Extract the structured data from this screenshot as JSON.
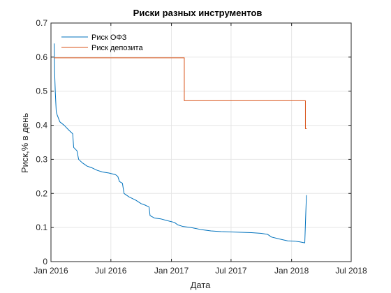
{
  "chart_data": {
    "type": "line",
    "title": "Риски разных инструментов",
    "xlabel": "Дата",
    "ylabel": "Риск,% в день",
    "xlim": [
      "2016-01-01",
      "2018-07-01"
    ],
    "ylim": [
      0,
      0.7
    ],
    "x_ticks": [
      {
        "date": "2016-01-01",
        "label": "Jan 2016"
      },
      {
        "date": "2016-07-01",
        "label": "Jul 2016"
      },
      {
        "date": "2017-01-01",
        "label": "Jan 2017"
      },
      {
        "date": "2017-07-01",
        "label": "Jul 2017"
      },
      {
        "date": "2018-01-01",
        "label": "Jan 2018"
      },
      {
        "date": "2018-07-01",
        "label": "Jul 2018"
      }
    ],
    "y_ticks": [
      {
        "value": 0,
        "label": "0"
      },
      {
        "value": 0.1,
        "label": "0.1"
      },
      {
        "value": 0.2,
        "label": "0.2"
      },
      {
        "value": 0.3,
        "label": "0.3"
      },
      {
        "value": 0.4,
        "label": "0.4"
      },
      {
        "value": 0.5,
        "label": "0.5"
      },
      {
        "value": 0.6,
        "label": "0.6"
      },
      {
        "value": 0.7,
        "label": "0.7"
      }
    ],
    "grid": true,
    "legend_position": "top-left",
    "series": [
      {
        "name": "Риск ОФЗ",
        "color": "#0072BD",
        "points": [
          [
            "2016-01-11",
            0.64
          ],
          [
            "2016-01-12",
            0.56
          ],
          [
            "2016-01-14",
            0.5
          ],
          [
            "2016-01-17",
            0.44
          ],
          [
            "2016-01-20",
            0.43
          ],
          [
            "2016-01-28",
            0.41
          ],
          [
            "2016-02-10",
            0.4
          ],
          [
            "2016-02-25",
            0.385
          ],
          [
            "2016-03-07",
            0.375
          ],
          [
            "2016-03-10",
            0.335
          ],
          [
            "2016-03-20",
            0.325
          ],
          [
            "2016-03-25",
            0.3
          ],
          [
            "2016-04-05",
            0.29
          ],
          [
            "2016-04-20",
            0.28
          ],
          [
            "2016-05-05",
            0.275
          ],
          [
            "2016-05-20",
            0.268
          ],
          [
            "2016-06-05",
            0.263
          ],
          [
            "2016-06-25",
            0.26
          ],
          [
            "2016-07-15",
            0.255
          ],
          [
            "2016-07-22",
            0.25
          ],
          [
            "2016-07-27",
            0.235
          ],
          [
            "2016-08-05",
            0.23
          ],
          [
            "2016-08-10",
            0.2
          ],
          [
            "2016-08-25",
            0.19
          ],
          [
            "2016-09-15",
            0.18
          ],
          [
            "2016-10-01",
            0.17
          ],
          [
            "2016-10-15",
            0.165
          ],
          [
            "2016-10-25",
            0.16
          ],
          [
            "2016-10-28",
            0.135
          ],
          [
            "2016-11-10",
            0.128
          ],
          [
            "2016-12-01",
            0.125
          ],
          [
            "2016-12-20",
            0.12
          ],
          [
            "2017-01-10",
            0.115
          ],
          [
            "2017-01-20",
            0.108
          ],
          [
            "2017-02-05",
            0.103
          ],
          [
            "2017-03-01",
            0.1
          ],
          [
            "2017-04-01",
            0.094
          ],
          [
            "2017-05-01",
            0.09
          ],
          [
            "2017-06-01",
            0.088
          ],
          [
            "2017-07-01",
            0.087
          ],
          [
            "2017-08-01",
            0.086
          ],
          [
            "2017-09-01",
            0.085
          ],
          [
            "2017-10-01",
            0.083
          ],
          [
            "2017-10-20",
            0.08
          ],
          [
            "2017-11-01",
            0.072
          ],
          [
            "2017-12-01",
            0.065
          ],
          [
            "2017-12-20",
            0.061
          ],
          [
            "2018-01-10",
            0.06
          ],
          [
            "2018-01-25",
            0.058
          ],
          [
            "2018-02-10",
            0.055
          ],
          [
            "2018-02-13",
            0.14
          ],
          [
            "2018-02-15",
            0.195
          ]
        ]
      },
      {
        "name": "Риск депозита",
        "color": "#D95319",
        "points": [
          [
            "2016-01-10",
            0.598
          ],
          [
            "2017-02-09",
            0.598
          ],
          [
            "2017-02-09",
            0.472
          ],
          [
            "2018-02-12",
            0.472
          ],
          [
            "2018-02-12",
            0.39
          ],
          [
            "2018-02-16",
            0.39
          ]
        ]
      }
    ]
  }
}
